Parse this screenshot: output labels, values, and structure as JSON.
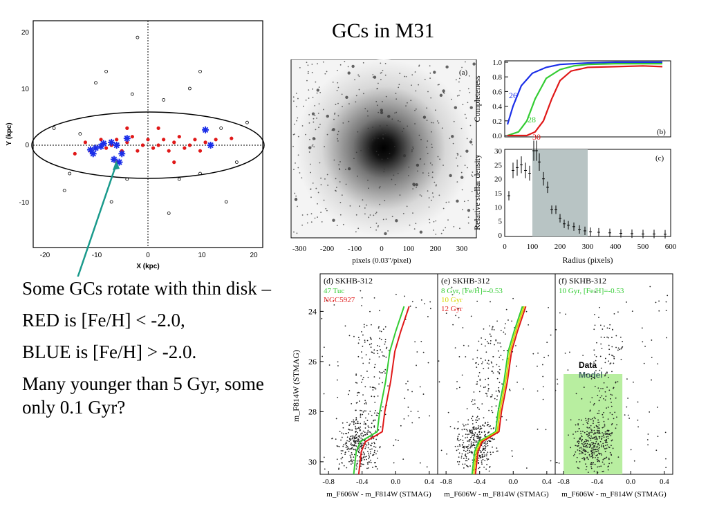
{
  "slide": {
    "title": "GCs in M31",
    "bullets": [
      "Some GCs rotate with thin disk –",
      "RED is [Fe/H] < -2.0,",
      "BLUE is [Fe/H] > -2.0.",
      "Many younger than 5 Gyr, some only 0.1 Gyr?"
    ]
  },
  "colors": {
    "red": "#e01818",
    "blue": "#1a2ee8",
    "green": "#33cc33",
    "arrow": "#1a9a8c",
    "yellow": "#d8d800",
    "shade": "#b8c4c4",
    "modelbox": "#b8eea0"
  },
  "chart_data": [
    {
      "type": "scatter",
      "title": "",
      "xlabel": "X (kpc)",
      "ylabel": "Y (kpc)",
      "xlim": [
        -22,
        22
      ],
      "ylim": [
        -18,
        22
      ],
      "xticks": [
        "-20",
        "-10",
        "0",
        "10",
        "20"
      ],
      "yticks": [
        "20",
        "10",
        "0",
        "-10"
      ],
      "series": [
        {
          "marker": "red-dot",
          "points": [
            [
              -14,
              -1.5
            ],
            [
              -12,
              0.5
            ],
            [
              -11,
              -1
            ],
            [
              -9,
              1
            ],
            [
              -8,
              -0.5
            ],
            [
              -7,
              0
            ],
            [
              -6,
              1
            ],
            [
              -5,
              -1
            ],
            [
              -4,
              0.5
            ],
            [
              -3,
              1.5
            ],
            [
              -2,
              -1
            ],
            [
              -1,
              0
            ],
            [
              0,
              1
            ],
            [
              1,
              -0.5
            ],
            [
              2,
              0
            ],
            [
              3,
              1
            ],
            [
              4,
              -1
            ],
            [
              5,
              0.5
            ],
            [
              6,
              1.5
            ],
            [
              7,
              -0.5
            ],
            [
              8,
              0
            ],
            [
              9,
              1
            ],
            [
              10,
              -1
            ],
            [
              11,
              0.5
            ],
            [
              13,
              1
            ],
            [
              16,
              1.2
            ],
            [
              -4,
              3
            ],
            [
              2,
              3
            ],
            [
              5,
              -3
            ],
            [
              -6,
              -3
            ]
          ]
        },
        {
          "marker": "blue-star",
          "points": [
            [
              -11,
              -0.8
            ],
            [
              -10,
              -0.5
            ],
            [
              -9,
              -0.2
            ],
            [
              -8.5,
              0.3
            ],
            [
              -7,
              0.5
            ],
            [
              -6,
              0
            ],
            [
              -5,
              -1.5
            ],
            [
              -4,
              1.2
            ],
            [
              -10.5,
              -1.5
            ],
            [
              -6.5,
              -2.5
            ],
            [
              -5.5,
              -3
            ],
            [
              11,
              2.7
            ],
            [
              12,
              0
            ]
          ]
        },
        {
          "marker": "open-circle",
          "points": [
            [
              -8,
              13
            ],
            [
              -10,
              11
            ],
            [
              -3,
              9
            ],
            [
              3,
              8
            ],
            [
              8,
              10
            ],
            [
              -16,
              -8
            ],
            [
              17,
              -3
            ],
            [
              15,
              -10
            ],
            [
              -7,
              -10
            ],
            [
              4,
              -12
            ],
            [
              -2,
              19
            ],
            [
              10,
              13
            ],
            [
              -13,
              2
            ],
            [
              14,
              3
            ],
            [
              -18,
              3
            ],
            [
              19,
              4
            ],
            [
              -15,
              -5
            ],
            [
              10,
              -5
            ],
            [
              -4,
              -6
            ],
            [
              6,
              -6
            ]
          ]
        }
      ]
    },
    {
      "type": "line",
      "title": "",
      "panel_label": "(b)",
      "xlabel": "",
      "ylabel": "Completeness",
      "xlim": [
        0,
        600
      ],
      "ylim": [
        0,
        1.0
      ],
      "yticks": [
        "0.0",
        "0.2",
        "0.4",
        "0.6",
        "0.8",
        "1.0"
      ],
      "series": [
        {
          "name": "26",
          "color": "blue",
          "x": [
            10,
            30,
            60,
            100,
            150,
            200,
            300,
            400,
            500,
            570
          ],
          "y": [
            0.15,
            0.4,
            0.68,
            0.85,
            0.93,
            0.97,
            0.99,
            1.0,
            1.0,
            1.0
          ]
        },
        {
          "name": "28",
          "color": "green",
          "x": [
            10,
            50,
            80,
            110,
            150,
            200,
            250,
            300,
            400,
            500,
            570
          ],
          "y": [
            0.0,
            0.05,
            0.2,
            0.5,
            0.78,
            0.9,
            0.95,
            0.97,
            0.98,
            0.98,
            0.98
          ]
        },
        {
          "name": "30",
          "color": "red",
          "x": [
            10,
            80,
            110,
            140,
            170,
            200,
            240,
            300,
            400,
            500,
            570
          ],
          "y": [
            0.0,
            0.0,
            0.05,
            0.2,
            0.5,
            0.75,
            0.88,
            0.93,
            0.94,
            0.95,
            0.94
          ]
        }
      ]
    },
    {
      "type": "scatter",
      "title": "",
      "panel_label": "(c)",
      "xlabel": "Radius (pixels)",
      "ylabel": "Relative stellar density",
      "xlim": [
        0,
        600
      ],
      "ylim": [
        0,
        30
      ],
      "xticks": [
        "0",
        "100",
        "200",
        "300",
        "400",
        "500",
        "600"
      ],
      "yticks": [
        "0",
        "5",
        "10",
        "15",
        "20",
        "25",
        "30"
      ],
      "shaded_range": [
        100,
        300
      ],
      "x": [
        15,
        30,
        45,
        60,
        75,
        90,
        105,
        115,
        125,
        140,
        155,
        170,
        185,
        200,
        215,
        230,
        250,
        270,
        290,
        310,
        340,
        380,
        420,
        460,
        500,
        540,
        580
      ],
      "y": [
        14,
        23,
        24,
        25,
        23,
        22,
        30,
        30,
        26,
        20,
        17,
        9,
        9,
        6,
        4,
        3.5,
        3,
        2,
        1.5,
        1.2,
        1,
        0.8,
        0.6,
        0.5,
        0.4,
        0.4,
        0.3
      ]
    },
    {
      "type": "image",
      "panel_label": "(a)",
      "xlabel": "pixels (0.03\"/pixel)",
      "xticks": [
        "-300",
        "-200",
        "-100",
        "0",
        "100",
        "200",
        "300"
      ]
    },
    {
      "type": "scatter",
      "title": "",
      "panels": [
        {
          "label": "(d) SKHB-312",
          "legend": [
            {
              "name": "47 Tuc",
              "color": "green"
            },
            {
              "name": "NGC5927",
              "color": "red"
            }
          ]
        },
        {
          "label": "(e) SKHB-312",
          "legend": [
            {
              "name": "8 Gyr, [Fe/H]=-0.53",
              "color": "green"
            },
            {
              "name": "10 Gyr",
              "color": "yellow"
            },
            {
              "name": "12 Gyr",
              "color": "red"
            }
          ]
        },
        {
          "label": "(f) SKHB-312",
          "legend": [
            {
              "name": "10 Gyr, [Fe/H]=-0.53",
              "color": "green"
            }
          ],
          "box_labels": [
            "Data",
            "Model"
          ]
        }
      ],
      "xlabel": "m_F606W - m_F814W (STMAG)",
      "ylabel": "m_F814W (STMAG)",
      "xlim": [
        -0.9,
        0.5
      ],
      "ylim": [
        30.5,
        22.5
      ],
      "xticks": [
        "-0.8",
        "-0.4",
        "0.0",
        "0.4"
      ],
      "yticks": [
        "24",
        "26",
        "28",
        "30"
      ]
    }
  ]
}
